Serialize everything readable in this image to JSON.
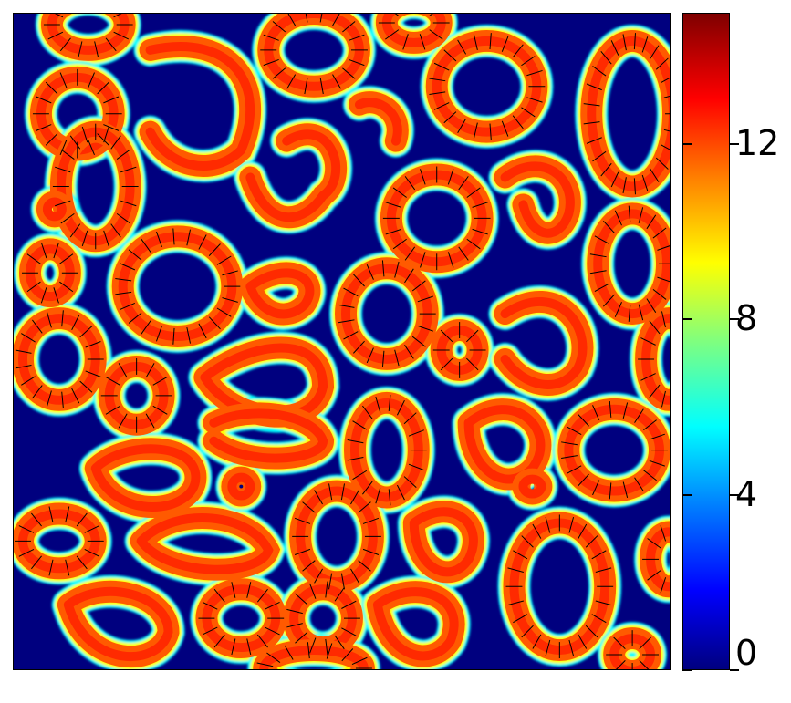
{
  "chart_data": {
    "type": "heatmap",
    "title": "",
    "xlabel": "",
    "ylabel": "",
    "colormap": "jet",
    "clim": [
      0,
      15
    ],
    "colorbar": {
      "ticks": [
        0,
        4,
        8,
        12
      ],
      "tick_labels": [
        "0",
        "4",
        "8",
        "12"
      ]
    },
    "background_value": 0,
    "ring_value": 13,
    "has_vector_field": true,
    "grid": false,
    "axes_ticks": false
  }
}
